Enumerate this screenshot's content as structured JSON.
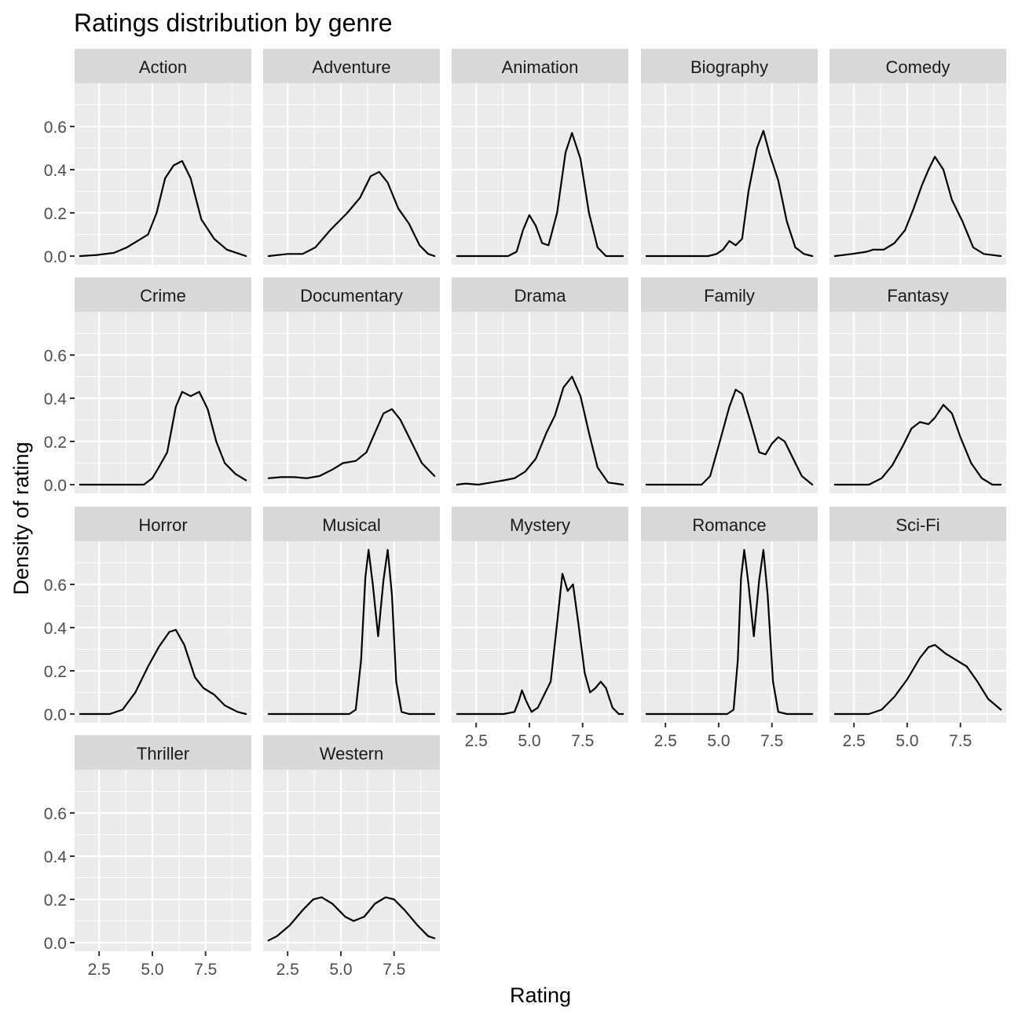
{
  "chart_data": {
    "type": "area",
    "title": "Ratings distribution by genre",
    "xlabel": "Rating",
    "ylabel": "Density of rating",
    "xlim": [
      1.35,
      9.65
    ],
    "ylim": [
      -0.04,
      0.8
    ],
    "x_ticks": [
      2.5,
      5.0,
      7.5
    ],
    "x_tick_labels": [
      "2.5",
      "5.0",
      "7.5"
    ],
    "y_ticks": [
      0.0,
      0.2,
      0.4,
      0.6
    ],
    "y_tick_labels": [
      "0.0",
      "0.2",
      "0.4",
      "0.6"
    ],
    "x_minor_ticks": [
      3.75,
      6.25,
      8.75
    ],
    "y_minor_ticks": [
      0.1,
      0.3,
      0.5,
      0.7
    ],
    "grid": true,
    "facet_columns": 5,
    "colors": {
      "panel_bg": "#EBEBEB",
      "strip_bg": "#D9D9D9",
      "grid": "#FFFFFF",
      "line": "#000000",
      "tick": "#333333",
      "text": "#4D4D4D"
    },
    "series": [
      {
        "name": "Action",
        "points": [
          [
            1.6,
            0.0
          ],
          [
            2.4,
            0.005
          ],
          [
            3.2,
            0.015
          ],
          [
            3.8,
            0.04
          ],
          [
            4.3,
            0.07
          ],
          [
            4.8,
            0.1
          ],
          [
            5.2,
            0.2
          ],
          [
            5.6,
            0.36
          ],
          [
            6.0,
            0.42
          ],
          [
            6.4,
            0.44
          ],
          [
            6.8,
            0.36
          ],
          [
            7.3,
            0.17
          ],
          [
            7.9,
            0.08
          ],
          [
            8.5,
            0.03
          ],
          [
            9.1,
            0.01
          ],
          [
            9.4,
            0.0
          ]
        ]
      },
      {
        "name": "Adventure",
        "points": [
          [
            1.6,
            0.0
          ],
          [
            2.5,
            0.01
          ],
          [
            3.2,
            0.01
          ],
          [
            3.8,
            0.04
          ],
          [
            4.5,
            0.12
          ],
          [
            5.3,
            0.2
          ],
          [
            5.9,
            0.27
          ],
          [
            6.4,
            0.37
          ],
          [
            6.8,
            0.39
          ],
          [
            7.2,
            0.34
          ],
          [
            7.7,
            0.22
          ],
          [
            8.2,
            0.15
          ],
          [
            8.7,
            0.05
          ],
          [
            9.1,
            0.01
          ],
          [
            9.4,
            0.0
          ]
        ]
      },
      {
        "name": "Animation",
        "points": [
          [
            1.6,
            0.0
          ],
          [
            3.2,
            0.0
          ],
          [
            4.0,
            0.0
          ],
          [
            4.4,
            0.02
          ],
          [
            4.7,
            0.12
          ],
          [
            5.0,
            0.19
          ],
          [
            5.3,
            0.14
          ],
          [
            5.6,
            0.06
          ],
          [
            5.9,
            0.05
          ],
          [
            6.3,
            0.2
          ],
          [
            6.7,
            0.48
          ],
          [
            7.0,
            0.57
          ],
          [
            7.4,
            0.45
          ],
          [
            7.8,
            0.2
          ],
          [
            8.2,
            0.04
          ],
          [
            8.6,
            0.0
          ],
          [
            9.4,
            0.0
          ]
        ]
      },
      {
        "name": "Biography",
        "points": [
          [
            1.6,
            0.0
          ],
          [
            3.5,
            0.0
          ],
          [
            4.5,
            0.0
          ],
          [
            4.9,
            0.01
          ],
          [
            5.2,
            0.03
          ],
          [
            5.5,
            0.07
          ],
          [
            5.8,
            0.05
          ],
          [
            6.1,
            0.08
          ],
          [
            6.4,
            0.3
          ],
          [
            6.8,
            0.5
          ],
          [
            7.1,
            0.58
          ],
          [
            7.4,
            0.47
          ],
          [
            7.8,
            0.35
          ],
          [
            8.2,
            0.16
          ],
          [
            8.6,
            0.04
          ],
          [
            9.0,
            0.01
          ],
          [
            9.4,
            0.0
          ]
        ]
      },
      {
        "name": "Comedy",
        "points": [
          [
            1.6,
            0.0
          ],
          [
            2.4,
            0.01
          ],
          [
            3.1,
            0.02
          ],
          [
            3.4,
            0.03
          ],
          [
            3.9,
            0.03
          ],
          [
            4.4,
            0.06
          ],
          [
            4.9,
            0.12
          ],
          [
            5.3,
            0.22
          ],
          [
            5.7,
            0.33
          ],
          [
            6.0,
            0.4
          ],
          [
            6.3,
            0.46
          ],
          [
            6.7,
            0.4
          ],
          [
            7.1,
            0.26
          ],
          [
            7.6,
            0.16
          ],
          [
            8.1,
            0.04
          ],
          [
            8.6,
            0.01
          ],
          [
            9.4,
            0.0
          ]
        ]
      },
      {
        "name": "Crime",
        "points": [
          [
            1.6,
            0.0
          ],
          [
            3.5,
            0.0
          ],
          [
            4.6,
            0.0
          ],
          [
            5.0,
            0.03
          ],
          [
            5.3,
            0.08
          ],
          [
            5.7,
            0.15
          ],
          [
            6.1,
            0.36
          ],
          [
            6.4,
            0.43
          ],
          [
            6.8,
            0.41
          ],
          [
            7.2,
            0.43
          ],
          [
            7.6,
            0.35
          ],
          [
            8.0,
            0.2
          ],
          [
            8.4,
            0.1
          ],
          [
            8.9,
            0.05
          ],
          [
            9.4,
            0.02
          ]
        ]
      },
      {
        "name": "Documentary",
        "points": [
          [
            1.6,
            0.03
          ],
          [
            2.2,
            0.035
          ],
          [
            2.8,
            0.035
          ],
          [
            3.4,
            0.03
          ],
          [
            4.0,
            0.04
          ],
          [
            4.6,
            0.07
          ],
          [
            5.1,
            0.1
          ],
          [
            5.7,
            0.11
          ],
          [
            6.2,
            0.15
          ],
          [
            6.6,
            0.24
          ],
          [
            7.0,
            0.33
          ],
          [
            7.4,
            0.35
          ],
          [
            7.8,
            0.3
          ],
          [
            8.3,
            0.2
          ],
          [
            8.8,
            0.1
          ],
          [
            9.4,
            0.04
          ]
        ]
      },
      {
        "name": "Drama",
        "points": [
          [
            1.6,
            0.0
          ],
          [
            2.0,
            0.005
          ],
          [
            2.6,
            0.0
          ],
          [
            3.2,
            0.01
          ],
          [
            3.8,
            0.02
          ],
          [
            4.3,
            0.03
          ],
          [
            4.8,
            0.06
          ],
          [
            5.3,
            0.12
          ],
          [
            5.8,
            0.24
          ],
          [
            6.2,
            0.32
          ],
          [
            6.6,
            0.45
          ],
          [
            7.0,
            0.5
          ],
          [
            7.4,
            0.41
          ],
          [
            7.8,
            0.24
          ],
          [
            8.2,
            0.08
          ],
          [
            8.7,
            0.01
          ],
          [
            9.4,
            0.0
          ]
        ]
      },
      {
        "name": "Family",
        "points": [
          [
            1.6,
            0.0
          ],
          [
            3.4,
            0.0
          ],
          [
            4.2,
            0.0
          ],
          [
            4.6,
            0.04
          ],
          [
            5.0,
            0.18
          ],
          [
            5.5,
            0.36
          ],
          [
            5.8,
            0.44
          ],
          [
            6.1,
            0.42
          ],
          [
            6.5,
            0.29
          ],
          [
            6.9,
            0.15
          ],
          [
            7.2,
            0.14
          ],
          [
            7.5,
            0.19
          ],
          [
            7.8,
            0.22
          ],
          [
            8.1,
            0.2
          ],
          [
            8.5,
            0.12
          ],
          [
            8.9,
            0.04
          ],
          [
            9.4,
            0.0
          ]
        ]
      },
      {
        "name": "Fantasy",
        "points": [
          [
            1.6,
            0.0
          ],
          [
            3.2,
            0.0
          ],
          [
            3.8,
            0.03
          ],
          [
            4.3,
            0.09
          ],
          [
            4.8,
            0.18
          ],
          [
            5.2,
            0.26
          ],
          [
            5.6,
            0.29
          ],
          [
            6.0,
            0.28
          ],
          [
            6.3,
            0.31
          ],
          [
            6.7,
            0.37
          ],
          [
            7.1,
            0.33
          ],
          [
            7.5,
            0.22
          ],
          [
            8.0,
            0.1
          ],
          [
            8.5,
            0.03
          ],
          [
            9.0,
            0.0
          ],
          [
            9.4,
            0.0
          ]
        ]
      },
      {
        "name": "Horror",
        "points": [
          [
            1.6,
            0.0
          ],
          [
            3.0,
            0.0
          ],
          [
            3.6,
            0.02
          ],
          [
            4.2,
            0.1
          ],
          [
            4.8,
            0.22
          ],
          [
            5.3,
            0.31
          ],
          [
            5.8,
            0.38
          ],
          [
            6.1,
            0.39
          ],
          [
            6.5,
            0.32
          ],
          [
            7.0,
            0.17
          ],
          [
            7.4,
            0.12
          ],
          [
            7.9,
            0.09
          ],
          [
            8.4,
            0.04
          ],
          [
            9.0,
            0.01
          ],
          [
            9.4,
            0.0
          ]
        ]
      },
      {
        "name": "Musical",
        "points": [
          [
            1.6,
            0.0
          ],
          [
            4.8,
            0.0
          ],
          [
            5.4,
            0.0
          ],
          [
            5.7,
            0.02
          ],
          [
            5.95,
            0.25
          ],
          [
            6.15,
            0.63
          ],
          [
            6.3,
            0.76
          ],
          [
            6.5,
            0.6
          ],
          [
            6.75,
            0.36
          ],
          [
            7.0,
            0.62
          ],
          [
            7.2,
            0.76
          ],
          [
            7.4,
            0.55
          ],
          [
            7.6,
            0.15
          ],
          [
            7.85,
            0.01
          ],
          [
            8.2,
            0.0
          ],
          [
            9.4,
            0.0
          ]
        ]
      },
      {
        "name": "Mystery",
        "points": [
          [
            1.6,
            0.0
          ],
          [
            3.8,
            0.0
          ],
          [
            4.3,
            0.01
          ],
          [
            4.5,
            0.06
          ],
          [
            4.65,
            0.11
          ],
          [
            4.85,
            0.06
          ],
          [
            5.1,
            0.01
          ],
          [
            5.4,
            0.03
          ],
          [
            5.7,
            0.09
          ],
          [
            6.0,
            0.15
          ],
          [
            6.3,
            0.42
          ],
          [
            6.55,
            0.65
          ],
          [
            6.8,
            0.57
          ],
          [
            7.05,
            0.6
          ],
          [
            7.3,
            0.42
          ],
          [
            7.6,
            0.19
          ],
          [
            7.85,
            0.1
          ],
          [
            8.1,
            0.12
          ],
          [
            8.35,
            0.15
          ],
          [
            8.6,
            0.12
          ],
          [
            8.9,
            0.03
          ],
          [
            9.2,
            0.0
          ],
          [
            9.4,
            0.0
          ]
        ]
      },
      {
        "name": "Romance",
        "points": [
          [
            1.6,
            0.0
          ],
          [
            4.8,
            0.0
          ],
          [
            5.4,
            0.0
          ],
          [
            5.7,
            0.02
          ],
          [
            5.9,
            0.25
          ],
          [
            6.05,
            0.63
          ],
          [
            6.2,
            0.76
          ],
          [
            6.4,
            0.6
          ],
          [
            6.65,
            0.36
          ],
          [
            6.9,
            0.62
          ],
          [
            7.1,
            0.76
          ],
          [
            7.3,
            0.55
          ],
          [
            7.55,
            0.15
          ],
          [
            7.8,
            0.01
          ],
          [
            8.2,
            0.0
          ],
          [
            9.4,
            0.0
          ]
        ]
      },
      {
        "name": "Sci-Fi",
        "points": [
          [
            1.6,
            0.0
          ],
          [
            3.2,
            0.0
          ],
          [
            3.8,
            0.02
          ],
          [
            4.4,
            0.08
          ],
          [
            5.0,
            0.16
          ],
          [
            5.6,
            0.26
          ],
          [
            6.0,
            0.31
          ],
          [
            6.3,
            0.32
          ],
          [
            6.8,
            0.28
          ],
          [
            7.3,
            0.25
          ],
          [
            7.8,
            0.22
          ],
          [
            8.3,
            0.15
          ],
          [
            8.8,
            0.07
          ],
          [
            9.4,
            0.02
          ]
        ]
      },
      {
        "name": "Thriller",
        "points": []
      },
      {
        "name": "Western",
        "points": [
          [
            1.6,
            0.01
          ],
          [
            2.0,
            0.03
          ],
          [
            2.6,
            0.08
          ],
          [
            3.2,
            0.15
          ],
          [
            3.7,
            0.2
          ],
          [
            4.1,
            0.21
          ],
          [
            4.6,
            0.18
          ],
          [
            5.2,
            0.12
          ],
          [
            5.6,
            0.1
          ],
          [
            6.1,
            0.12
          ],
          [
            6.6,
            0.18
          ],
          [
            7.1,
            0.21
          ],
          [
            7.5,
            0.2
          ],
          [
            8.0,
            0.15
          ],
          [
            8.6,
            0.08
          ],
          [
            9.1,
            0.03
          ],
          [
            9.4,
            0.02
          ]
        ]
      }
    ]
  }
}
